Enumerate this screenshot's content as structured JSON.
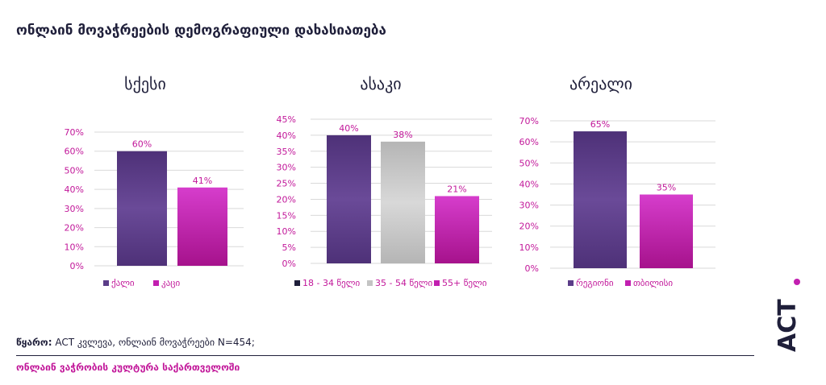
{
  "main_title": "ონლაინ მოვაჭრეების დემოგრაფიული დახასიათება",
  "source_label": "წყარო:",
  "source_text": " ACT კვლევა, ონლაინ მოვაჭრეები N=454;",
  "footer": "ონლაინ ვაჭრობის კულტურა საქართველოში",
  "logo_text": "ACT",
  "colors": {
    "purple": "#5b3d88",
    "grey": "#c4c4c4",
    "magenta": "#c21fb0",
    "dark": "#1f1f3a"
  },
  "chart_data": [
    {
      "type": "bar",
      "title": "სქესი",
      "categories": [
        "ქალი",
        "კაცი"
      ],
      "values": [
        60,
        41
      ],
      "value_labels": [
        "60%",
        "41%"
      ],
      "colors": [
        "#5b3d88",
        "#c21fb0"
      ],
      "yticks": [
        "0%",
        "10%",
        "20%",
        "30%",
        "40%",
        "50%",
        "60%",
        "70%"
      ],
      "ylim": [
        0,
        70
      ],
      "grid": true,
      "legend": "bottom"
    },
    {
      "type": "bar",
      "title": "ასაკი",
      "categories": [
        "18 - 34 წელი",
        "35 - 54 წელი",
        "55+ წელი"
      ],
      "values": [
        40,
        38,
        21
      ],
      "value_labels": [
        "40%",
        "38%",
        "21%"
      ],
      "colors": [
        "#5b3d88",
        "#c4c4c4",
        "#c21fb0"
      ],
      "yticks": [
        "0%",
        "5%",
        "10%",
        "15%",
        "20%",
        "25%",
        "30%",
        "35%",
        "40%",
        "45%"
      ],
      "ylim": [
        0,
        45
      ],
      "grid": true,
      "legend": "bottom"
    },
    {
      "type": "bar",
      "title": "არეალი",
      "categories": [
        "რეგიონი",
        "თბილისი"
      ],
      "values": [
        65,
        35
      ],
      "value_labels": [
        "65%",
        "35%"
      ],
      "colors": [
        "#5b3d88",
        "#c21fb0"
      ],
      "yticks": [
        "0%",
        "10%",
        "20%",
        "30%",
        "40%",
        "50%",
        "60%",
        "70%"
      ],
      "ylim": [
        0,
        70
      ],
      "grid": true,
      "legend": "bottom"
    }
  ]
}
